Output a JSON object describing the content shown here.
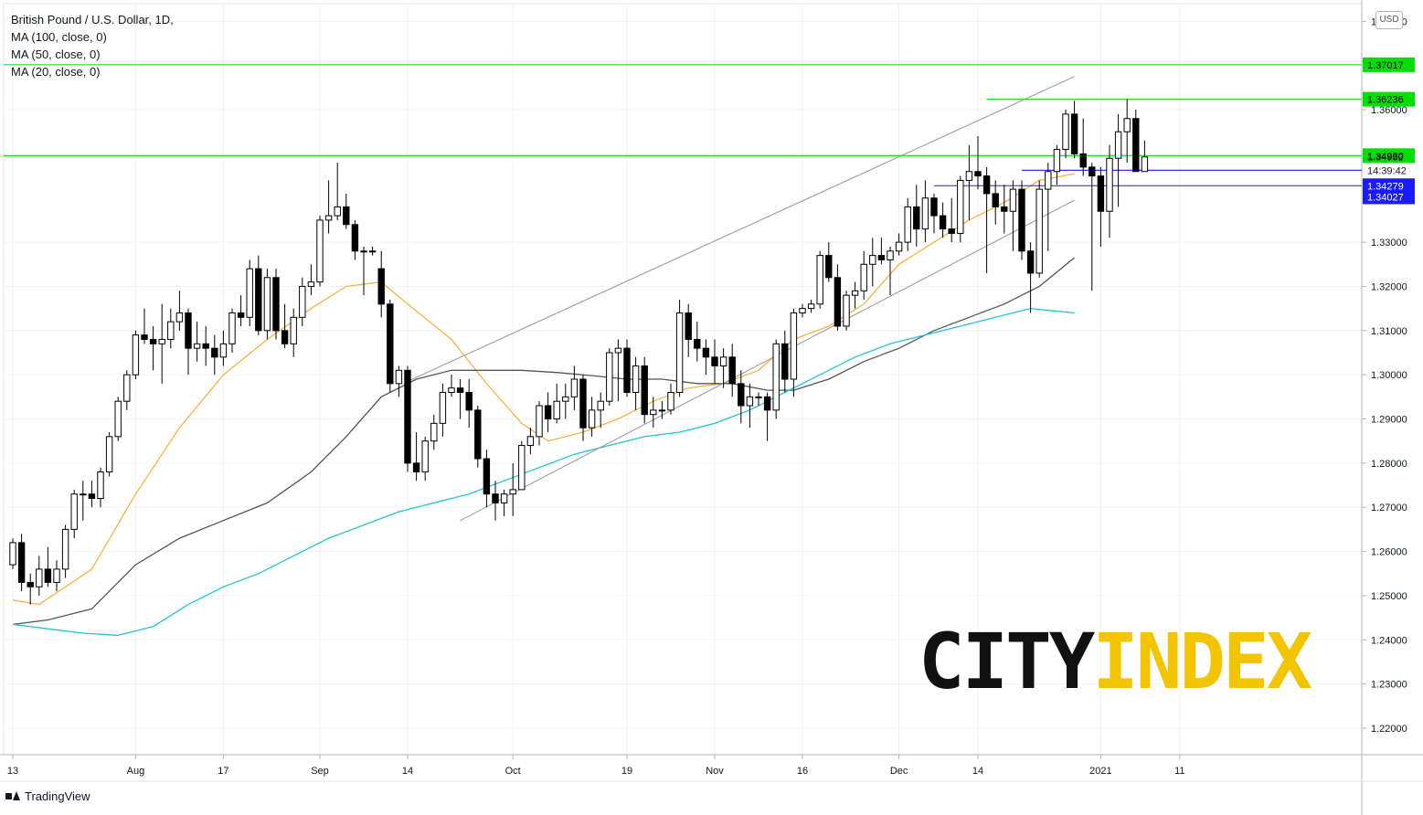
{
  "legend": {
    "title": "British Pound / U.S. Dollar, 1D,",
    "ma100": "MA (100, close, 0)",
    "ma50": "MA (50, close, 0)",
    "ma20": "MA (20, close, 0)"
  },
  "currency_badge": "USD",
  "logo": {
    "part1": "CITY",
    "part2": "INDEX"
  },
  "footer": {
    "brand": "TradingView"
  },
  "colors": {
    "green_level": "#00e000",
    "blue_level": "#1a1aff",
    "ma20": "#f5b342",
    "ma50": "#555555",
    "ma100": "#1ec5d6",
    "channel": "#9e9e9e",
    "grid": "#f0f3fa",
    "candle_up_fill": "#ffffff",
    "candle_down_fill": "#000000"
  },
  "chart_data": {
    "type": "candlestick",
    "title": "British Pound / U.S. Dollar, 1D,",
    "ylim": [
      1.214,
      1.384
    ],
    "y_ticks": [
      "1.38000",
      "1.36000",
      "1.35000",
      "1.33000",
      "1.32000",
      "1.31000",
      "1.30000",
      "1.29000",
      "1.28000",
      "1.27000",
      "1.26000",
      "1.25000",
      "1.24000",
      "1.23000",
      "1.22000"
    ],
    "x_ticks": [
      {
        "label": "13",
        "bar": 0
      },
      {
        "label": "Aug",
        "bar": 14
      },
      {
        "label": "17",
        "bar": 24
      },
      {
        "label": "Sep",
        "bar": 35
      },
      {
        "label": "14",
        "bar": 45
      },
      {
        "label": "Oct",
        "bar": 57
      },
      {
        "label": "19",
        "bar": 70
      },
      {
        "label": "Nov",
        "bar": 80
      },
      {
        "label": "16",
        "bar": 90
      },
      {
        "label": "Dec",
        "bar": 101
      },
      {
        "label": "14",
        "bar": 110
      },
      {
        "label": "2021",
        "bar": 124
      },
      {
        "label": "11",
        "bar": 133
      }
    ],
    "price_labels": [
      {
        "text": "1.37017",
        "value": 1.37017,
        "style": "green"
      },
      {
        "text": "1.36236",
        "value": 1.36236,
        "style": "green"
      },
      {
        "text": "1.34960",
        "value": 1.3496,
        "style": "green"
      },
      {
        "text": "1.34932",
        "value": 1.34932,
        "style": "plain"
      },
      {
        "text": "14:39:42",
        "value": 1.3463,
        "style": "plain"
      },
      {
        "text": "1.34279",
        "value": 1.34279,
        "style": "blue"
      },
      {
        "text": "1.34027",
        "value": 1.34027,
        "style": "blue"
      }
    ],
    "horizontal_levels": [
      {
        "value": 1.37017,
        "from_bar": -1,
        "color": "green"
      },
      {
        "value": 1.36236,
        "from_bar": 111,
        "color": "green"
      },
      {
        "value": 1.3496,
        "from_bar": -1,
        "color": "green"
      },
      {
        "value": 1.34279,
        "from_bar": 105,
        "color": "blue"
      },
      {
        "value": 1.3463,
        "from_bar": 115,
        "color": "blue"
      }
    ],
    "channel_lines": [
      {
        "from": {
          "bar": 45,
          "value": 1.2985
        },
        "to": {
          "bar": 121,
          "value": 1.3675
        }
      },
      {
        "from": {
          "bar": 51,
          "value": 1.267
        },
        "to": {
          "bar": 121,
          "value": 1.3395
        }
      }
    ],
    "candles": [
      [
        1.257,
        1.263,
        1.256,
        1.262
      ],
      [
        1.262,
        1.264,
        1.251,
        1.253
      ],
      [
        1.253,
        1.255,
        1.248,
        1.252
      ],
      [
        1.252,
        1.259,
        1.25,
        1.256
      ],
      [
        1.256,
        1.261,
        1.252,
        1.253
      ],
      [
        1.253,
        1.258,
        1.251,
        1.256
      ],
      [
        1.256,
        1.266,
        1.254,
        1.265
      ],
      [
        1.265,
        1.274,
        1.263,
        1.273
      ],
      [
        1.273,
        1.276,
        1.267,
        1.273
      ],
      [
        1.273,
        1.276,
        1.27,
        1.272
      ],
      [
        1.272,
        1.279,
        1.27,
        1.278
      ],
      [
        1.278,
        1.287,
        1.277,
        1.286
      ],
      [
        1.286,
        1.295,
        1.285,
        1.294
      ],
      [
        1.294,
        1.301,
        1.292,
        1.3
      ],
      [
        1.3,
        1.31,
        1.299,
        1.309
      ],
      [
        1.309,
        1.315,
        1.307,
        1.308
      ],
      [
        1.308,
        1.311,
        1.301,
        1.307
      ],
      [
        1.307,
        1.316,
        1.298,
        1.308
      ],
      [
        1.308,
        1.315,
        1.306,
        1.312
      ],
      [
        1.312,
        1.319,
        1.31,
        1.314
      ],
      [
        1.314,
        1.315,
        1.3,
        1.306
      ],
      [
        1.306,
        1.312,
        1.303,
        1.307
      ],
      [
        1.307,
        1.311,
        1.302,
        1.306
      ],
      [
        1.306,
        1.309,
        1.3,
        1.304
      ],
      [
        1.304,
        1.31,
        1.302,
        1.307
      ],
      [
        1.307,
        1.315,
        1.305,
        1.314
      ],
      [
        1.314,
        1.318,
        1.311,
        1.313
      ],
      [
        1.313,
        1.326,
        1.311,
        1.324
      ],
      [
        1.324,
        1.327,
        1.309,
        1.31
      ],
      [
        1.31,
        1.324,
        1.308,
        1.322
      ],
      [
        1.322,
        1.324,
        1.308,
        1.31
      ],
      [
        1.31,
        1.316,
        1.306,
        1.307
      ],
      [
        1.307,
        1.315,
        1.304,
        1.313
      ],
      [
        1.313,
        1.322,
        1.311,
        1.32
      ],
      [
        1.32,
        1.325,
        1.318,
        1.321
      ],
      [
        1.321,
        1.336,
        1.32,
        1.335
      ],
      [
        1.335,
        1.344,
        1.332,
        1.336
      ],
      [
        1.336,
        1.348,
        1.335,
        1.338
      ],
      [
        1.338,
        1.341,
        1.333,
        1.334
      ],
      [
        1.334,
        1.335,
        1.326,
        1.328
      ],
      [
        1.328,
        1.329,
        1.318,
        1.328
      ],
      [
        1.328,
        1.329,
        1.327,
        1.328
      ],
      [
        1.324,
        1.328,
        1.313,
        1.316
      ],
      [
        1.316,
        1.317,
        1.296,
        1.298
      ],
      [
        1.298,
        1.302,
        1.295,
        1.301
      ],
      [
        1.301,
        1.302,
        1.278,
        1.28
      ],
      [
        1.28,
        1.287,
        1.276,
        1.278
      ],
      [
        1.278,
        1.286,
        1.276,
        1.285
      ],
      [
        1.285,
        1.291,
        1.283,
        1.289
      ],
      [
        1.289,
        1.298,
        1.286,
        1.296
      ],
      [
        1.296,
        1.3,
        1.295,
        1.297
      ],
      [
        1.297,
        1.299,
        1.29,
        1.296
      ],
      [
        1.296,
        1.299,
        1.288,
        1.292
      ],
      [
        1.292,
        1.293,
        1.279,
        1.281
      ],
      [
        1.281,
        1.283,
        1.27,
        1.273
      ],
      [
        1.273,
        1.276,
        1.267,
        1.271
      ],
      [
        1.271,
        1.274,
        1.268,
        1.273
      ],
      [
        1.273,
        1.28,
        1.268,
        1.274
      ],
      [
        1.274,
        1.285,
        1.274,
        1.284
      ],
      [
        1.284,
        1.288,
        1.282,
        1.286
      ],
      [
        1.286,
        1.294,
        1.284,
        1.293
      ],
      [
        1.293,
        1.296,
        1.287,
        1.29
      ],
      [
        1.29,
        1.298,
        1.289,
        1.294
      ],
      [
        1.294,
        1.298,
        1.29,
        1.295
      ],
      [
        1.295,
        1.302,
        1.292,
        1.299
      ],
      [
        1.299,
        1.3,
        1.285,
        1.288
      ],
      [
        1.288,
        1.295,
        1.286,
        1.292
      ],
      [
        1.292,
        1.296,
        1.288,
        1.294
      ],
      [
        1.294,
        1.306,
        1.293,
        1.305
      ],
      [
        1.305,
        1.308,
        1.294,
        1.306
      ],
      [
        1.306,
        1.308,
        1.295,
        1.296
      ],
      [
        1.296,
        1.304,
        1.292,
        1.302
      ],
      [
        1.302,
        1.304,
        1.289,
        1.291
      ],
      [
        1.291,
        1.295,
        1.288,
        1.292
      ],
      [
        1.292,
        1.294,
        1.29,
        1.292
      ],
      [
        1.292,
        1.298,
        1.291,
        1.296
      ],
      [
        1.296,
        1.317,
        1.295,
        1.314
      ],
      [
        1.314,
        1.316,
        1.304,
        1.308
      ],
      [
        1.308,
        1.312,
        1.303,
        1.306
      ],
      [
        1.306,
        1.308,
        1.3,
        1.304
      ],
      [
        1.304,
        1.308,
        1.298,
        1.302
      ],
      [
        1.302,
        1.306,
        1.297,
        1.304
      ],
      [
        1.304,
        1.307,
        1.295,
        1.298
      ],
      [
        1.298,
        1.301,
        1.289,
        1.293
      ],
      [
        1.293,
        1.298,
        1.288,
        1.295
      ],
      [
        1.295,
        1.296,
        1.293,
        1.295
      ],
      [
        1.295,
        1.296,
        1.285,
        1.292
      ],
      [
        1.292,
        1.308,
        1.29,
        1.307
      ],
      [
        1.307,
        1.31,
        1.296,
        1.299
      ],
      [
        1.299,
        1.315,
        1.295,
        1.314
      ],
      [
        1.314,
        1.316,
        1.313,
        1.315
      ],
      [
        1.315,
        1.317,
        1.314,
        1.316
      ],
      [
        1.316,
        1.328,
        1.315,
        1.327
      ],
      [
        1.327,
        1.33,
        1.321,
        1.322
      ],
      [
        1.322,
        1.325,
        1.31,
        1.311
      ],
      [
        1.311,
        1.319,
        1.31,
        1.318
      ],
      [
        1.318,
        1.321,
        1.315,
        1.319
      ],
      [
        1.319,
        1.328,
        1.317,
        1.325
      ],
      [
        1.325,
        1.331,
        1.32,
        1.327
      ],
      [
        1.327,
        1.331,
        1.325,
        1.326
      ],
      [
        1.326,
        1.329,
        1.318,
        1.328
      ],
      [
        1.328,
        1.332,
        1.327,
        1.33
      ],
      [
        1.33,
        1.34,
        1.328,
        1.338
      ],
      [
        1.338,
        1.343,
        1.329,
        1.333
      ],
      [
        1.333,
        1.344,
        1.33,
        1.34
      ],
      [
        1.34,
        1.341,
        1.332,
        1.336
      ],
      [
        1.336,
        1.339,
        1.331,
        1.333
      ],
      [
        1.333,
        1.34,
        1.33,
        1.332
      ],
      [
        1.332,
        1.345,
        1.33,
        1.344
      ],
      [
        1.344,
        1.352,
        1.335,
        1.346
      ],
      [
        1.346,
        1.354,
        1.342,
        1.345
      ],
      [
        1.345,
        1.347,
        1.323,
        1.341
      ],
      [
        1.341,
        1.344,
        1.334,
        1.338
      ],
      [
        1.338,
        1.343,
        1.332,
        1.337
      ],
      [
        1.337,
        1.344,
        1.328,
        1.342
      ],
      [
        1.342,
        1.344,
        1.326,
        1.328
      ],
      [
        1.328,
        1.33,
        1.314,
        1.323
      ],
      [
        1.323,
        1.344,
        1.322,
        1.342
      ],
      [
        1.342,
        1.348,
        1.328,
        1.346
      ],
      [
        1.346,
        1.352,
        1.343,
        1.351
      ],
      [
        1.351,
        1.36,
        1.349,
        1.359
      ],
      [
        1.359,
        1.362,
        1.349,
        1.35
      ],
      [
        1.35,
        1.358,
        1.345,
        1.347
      ],
      [
        1.347,
        1.348,
        1.319,
        1.345
      ],
      [
        1.345,
        1.347,
        1.329,
        1.337
      ],
      [
        1.337,
        1.352,
        1.331,
        1.349
      ],
      [
        1.349,
        1.359,
        1.338,
        1.355
      ],
      [
        1.355,
        1.3624,
        1.348,
        1.358
      ],
      [
        1.358,
        1.36,
        1.347,
        1.346
      ],
      [
        1.346,
        1.353,
        1.346,
        1.3493
      ]
    ],
    "series": [
      {
        "name": "MA (20, close, 0)",
        "x_start": 0,
        "points": [
          [
            0,
            1.249
          ],
          [
            3,
            1.248
          ],
          [
            9,
            1.256
          ],
          [
            14,
            1.273
          ],
          [
            19,
            1.288
          ],
          [
            24,
            1.3
          ],
          [
            29,
            1.308
          ],
          [
            34,
            1.315
          ],
          [
            38,
            1.32
          ],
          [
            42,
            1.321
          ],
          [
            45,
            1.316
          ],
          [
            50,
            1.308
          ],
          [
            54,
            1.298
          ],
          [
            58,
            1.289
          ],
          [
            61,
            1.285
          ],
          [
            65,
            1.287
          ],
          [
            69,
            1.29
          ],
          [
            73,
            1.294
          ],
          [
            77,
            1.297
          ],
          [
            81,
            1.298
          ],
          [
            85,
            1.301
          ],
          [
            89,
            1.308
          ],
          [
            93,
            1.311
          ],
          [
            97,
            1.316
          ],
          [
            101,
            1.325
          ],
          [
            105,
            1.33
          ],
          [
            109,
            1.335
          ],
          [
            113,
            1.339
          ],
          [
            117,
            1.344
          ],
          [
            121,
            1.3455
          ]
        ]
      },
      {
        "name": "MA (50, close, 0)",
        "x_start": 0,
        "points": [
          [
            0,
            1.2435
          ],
          [
            4,
            1.2445
          ],
          [
            9,
            1.247
          ],
          [
            14,
            1.257
          ],
          [
            19,
            1.263
          ],
          [
            24,
            1.267
          ],
          [
            29,
            1.271
          ],
          [
            34,
            1.278
          ],
          [
            38,
            1.286
          ],
          [
            42,
            1.295
          ],
          [
            46,
            1.299
          ],
          [
            50,
            1.301
          ],
          [
            54,
            1.301
          ],
          [
            58,
            1.301
          ],
          [
            62,
            1.3005
          ],
          [
            66,
            1.2998
          ],
          [
            70,
            1.299
          ],
          [
            74,
            1.299
          ],
          [
            78,
            1.298
          ],
          [
            82,
            1.298
          ],
          [
            86,
            1.2965
          ],
          [
            89,
            1.2965
          ],
          [
            93,
            1.299
          ],
          [
            97,
            1.303
          ],
          [
            101,
            1.306
          ],
          [
            105,
            1.31
          ],
          [
            109,
            1.313
          ],
          [
            113,
            1.316
          ],
          [
            117,
            1.32
          ],
          [
            121,
            1.3265
          ]
        ]
      },
      {
        "name": "MA (100, close, 0)",
        "x_start": 0,
        "points": [
          [
            0,
            1.2435
          ],
          [
            4,
            1.2425
          ],
          [
            8,
            1.2415
          ],
          [
            12,
            1.241
          ],
          [
            16,
            1.243
          ],
          [
            20,
            1.248
          ],
          [
            24,
            1.252
          ],
          [
            28,
            1.255
          ],
          [
            32,
            1.259
          ],
          [
            36,
            1.263
          ],
          [
            40,
            1.266
          ],
          [
            44,
            1.269
          ],
          [
            48,
            1.271
          ],
          [
            52,
            1.273
          ],
          [
            56,
            1.276
          ],
          [
            60,
            1.279
          ],
          [
            64,
            1.282
          ],
          [
            68,
            1.284
          ],
          [
            72,
            1.286
          ],
          [
            76,
            1.287
          ],
          [
            80,
            1.289
          ],
          [
            84,
            1.292
          ],
          [
            88,
            1.296
          ],
          [
            92,
            1.3
          ],
          [
            96,
            1.304
          ],
          [
            100,
            1.307
          ],
          [
            104,
            1.309
          ],
          [
            108,
            1.311
          ],
          [
            112,
            1.313
          ],
          [
            116,
            1.315
          ],
          [
            121,
            1.314
          ]
        ]
      }
    ]
  }
}
